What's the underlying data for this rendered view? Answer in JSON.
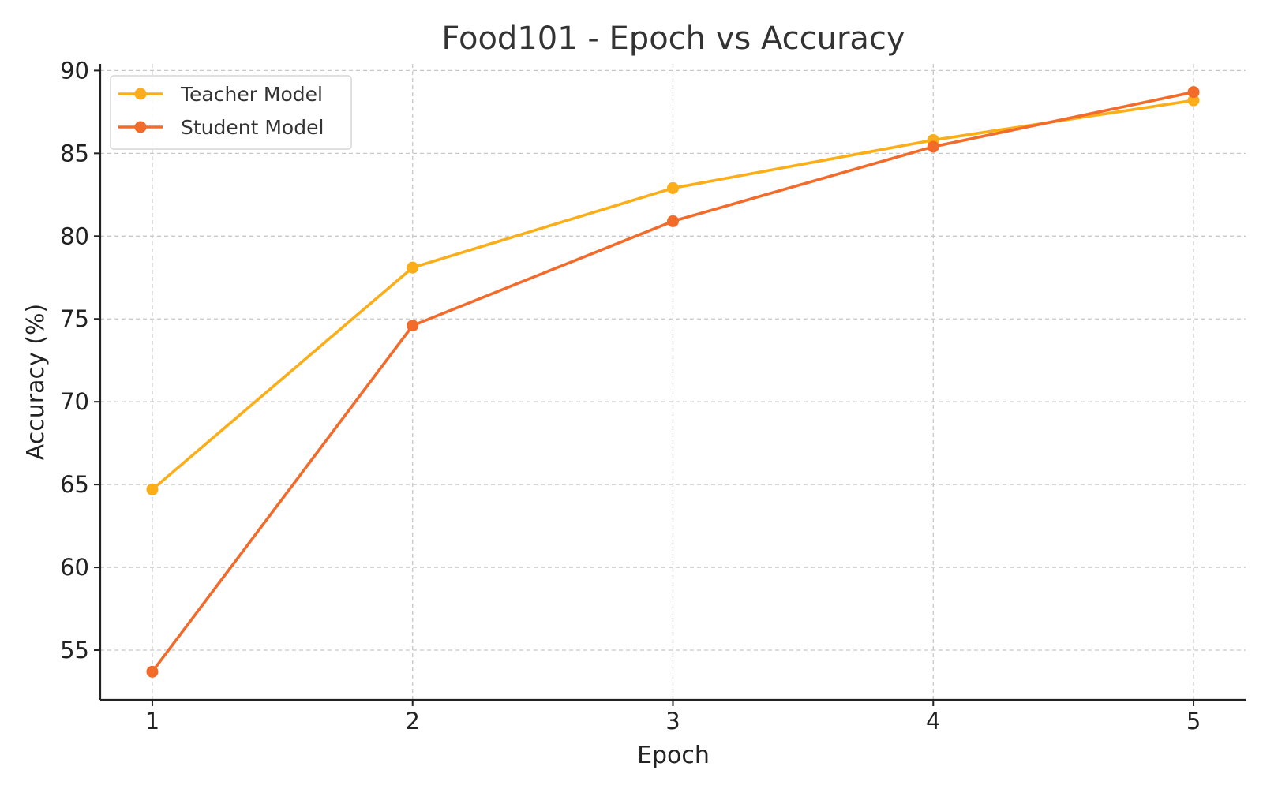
{
  "chart_data": {
    "type": "line",
    "title": "Food101 - Epoch vs Accuracy",
    "xlabel": "Epoch",
    "ylabel": "Accuracy (%)",
    "x": [
      1,
      2,
      3,
      4,
      5
    ],
    "xlim": [
      0.8,
      5.2
    ],
    "ylim": [
      52,
      90.4
    ],
    "xticks": [
      1,
      2,
      3,
      4,
      5
    ],
    "yticks": [
      55,
      60,
      65,
      70,
      75,
      80,
      85,
      90
    ],
    "grid": true,
    "legend_position": "top-left",
    "series": [
      {
        "name": "Teacher Model",
        "color": "#FBAE17",
        "marker": "circle",
        "values": [
          64.7,
          78.1,
          82.9,
          85.8,
          88.2
        ]
      },
      {
        "name": "Student Model",
        "color": "#F26B2A",
        "marker": "circle",
        "values": [
          53.7,
          74.6,
          80.9,
          85.4,
          88.7
        ]
      }
    ]
  }
}
